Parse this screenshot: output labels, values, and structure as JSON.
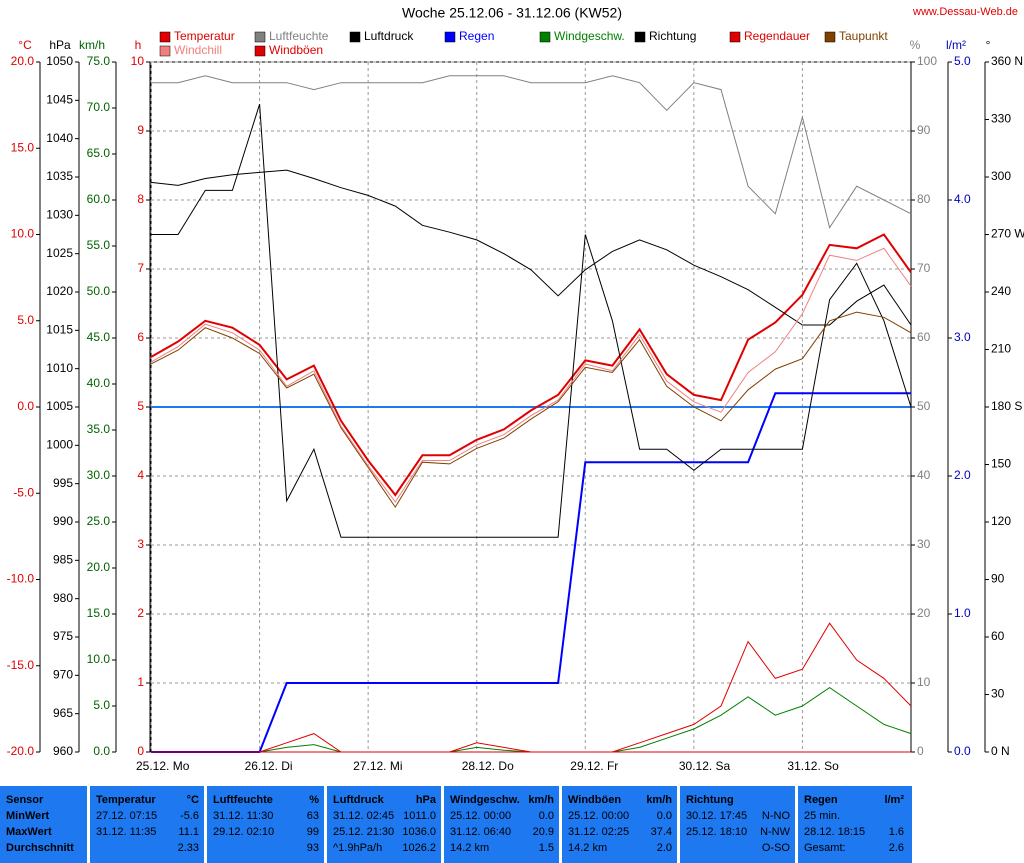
{
  "chart_data": {
    "type": "line",
    "title": "Woche 25.12.06 - 31.12.06 (KW52)",
    "website": "www.Dessau-Web.de",
    "x": [
      0,
      6,
      12,
      18,
      24,
      30,
      36,
      42,
      48,
      54,
      60,
      66,
      72,
      78,
      84,
      90,
      96,
      102,
      108,
      114,
      120,
      126,
      132,
      138,
      144,
      150,
      156,
      162,
      168
    ],
    "xlim": [
      0,
      168
    ],
    "xticks": [
      {
        "value": 0,
        "label": "25.12. Mo"
      },
      {
        "value": 24,
        "label": "26.12. Di"
      },
      {
        "value": 48,
        "label": "27.12. Mi"
      },
      {
        "value": 72,
        "label": "28.12. Do"
      },
      {
        "value": 96,
        "label": "29.12. Fr"
      },
      {
        "value": 120,
        "label": "30.12. Sa"
      },
      {
        "value": 144,
        "label": "31.12. So"
      }
    ],
    "grid": true,
    "axes": {
      "temp": {
        "unit": "°C",
        "color": "#e00000",
        "lim": [
          -20,
          20
        ],
        "ticks": [
          {
            "value": -20,
            "label": "-20.0"
          },
          {
            "value": -15,
            "label": "-15.0"
          },
          {
            "value": -10,
            "label": "-10.0"
          },
          {
            "value": -5,
            "label": "-5.0"
          },
          {
            "value": 0,
            "label": "0.0"
          },
          {
            "value": 5,
            "label": "5.0"
          },
          {
            "value": 10,
            "label": "10.0"
          },
          {
            "value": 15,
            "label": "15.0"
          },
          {
            "value": 20,
            "label": "20.0"
          }
        ]
      },
      "hpa": {
        "unit": "hPa",
        "color": "#000000",
        "lim": [
          960,
          1050
        ],
        "ticks": [
          960,
          965,
          970,
          975,
          980,
          985,
          990,
          995,
          1000,
          1005,
          1010,
          1015,
          1020,
          1025,
          1030,
          1035,
          1040,
          1045,
          1050
        ]
      },
      "kmh": {
        "unit": "km/h",
        "color": "#006400",
        "lim": [
          0,
          75
        ],
        "ticks": [
          {
            "value": 0,
            "label": "0.0"
          },
          {
            "value": 5,
            "label": "5.0"
          },
          {
            "value": 10,
            "label": "10.0"
          },
          {
            "value": 15,
            "label": "15.0"
          },
          {
            "value": 20,
            "label": "20.0"
          },
          {
            "value": 25,
            "label": "25.0"
          },
          {
            "value": 30,
            "label": "30.0"
          },
          {
            "value": 35,
            "label": "35.0"
          },
          {
            "value": 40,
            "label": "40.0"
          },
          {
            "value": 45,
            "label": "45.0"
          },
          {
            "value": 50,
            "label": "50.0"
          },
          {
            "value": 55,
            "label": "55.0"
          },
          {
            "value": 60,
            "label": "60.0"
          },
          {
            "value": 65,
            "label": "65.0"
          },
          {
            "value": 70,
            "label": "70.0"
          },
          {
            "value": 75,
            "label": "75.0"
          }
        ]
      },
      "h": {
        "unit": "h",
        "color": "#e00000",
        "lim": [
          0,
          10
        ],
        "ticks": [
          0,
          1,
          2,
          3,
          4,
          5,
          6,
          7,
          8,
          9,
          10
        ]
      },
      "pct": {
        "unit": "%",
        "color": "#808080",
        "lim": [
          0,
          100
        ],
        "ticks": [
          0,
          10,
          20,
          30,
          40,
          50,
          60,
          70,
          80,
          90,
          100
        ]
      },
      "rain": {
        "unit": "l/m²",
        "color": "#0000c0",
        "lim": [
          0,
          5
        ],
        "ticks": [
          {
            "value": 0,
            "label": "0.0"
          },
          {
            "value": 1,
            "label": "1.0"
          },
          {
            "value": 2,
            "label": "2.0"
          },
          {
            "value": 3,
            "label": "3.0"
          },
          {
            "value": 4,
            "label": "4.0"
          },
          {
            "value": 5,
            "label": "5.0"
          }
        ]
      },
      "deg": {
        "unit": "°",
        "color": "#000000",
        "lim": [
          0,
          360
        ],
        "ticks": [
          {
            "value": 0,
            "label": "0 N"
          },
          30,
          60,
          90,
          120,
          150,
          {
            "value": 180,
            "label": "180 S"
          },
          210,
          240,
          {
            "value": 270,
            "label": "270 W"
          },
          300,
          330,
          {
            "value": 360,
            "label": "360 N"
          }
        ]
      }
    },
    "series": [
      {
        "name": "Temperatur",
        "color": "#e00000",
        "axis": "temp",
        "values": [
          2.9,
          3.8,
          5.0,
          4.6,
          3.6,
          1.6,
          2.4,
          -0.8,
          -3.1,
          -5.1,
          -2.8,
          -2.8,
          -1.9,
          -1.3,
          -0.2,
          0.7,
          2.7,
          2.4,
          4.5,
          1.9,
          0.7,
          0.4,
          3.9,
          4.9,
          6.5,
          9.4,
          9.2,
          10.0,
          7.8
        ]
      },
      {
        "name": "Luftfeuchte",
        "color": "#808080",
        "axis": "pct",
        "values": [
          97,
          97,
          98,
          97,
          97,
          97,
          96,
          97,
          97,
          97,
          97,
          98,
          98,
          98,
          97,
          97,
          97,
          98,
          97,
          93,
          97,
          96,
          82,
          78,
          92,
          76,
          82,
          80,
          78
        ]
      },
      {
        "name": "Luftdruck",
        "color": "#000000",
        "axis": "hpa",
        "values": [
          1034.3,
          1033.9,
          1034.8,
          1035.3,
          1035.6,
          1035.9,
          1034.8,
          1033.6,
          1032.6,
          1031.2,
          1028.7,
          1027.8,
          1026.8,
          1025.0,
          1022.9,
          1019.5,
          1022.9,
          1025.3,
          1026.8,
          1025.5,
          1023.5,
          1022.0,
          1020.3,
          1018.0,
          1015.7,
          1015.7,
          1018.8,
          1020.9,
          1015.7
        ]
      },
      {
        "name": "Regen",
        "color": "#0000ff",
        "axis": "rain",
        "values": [
          0,
          0,
          0,
          0,
          0,
          0.5,
          0.5,
          0.5,
          0.5,
          0.5,
          0.5,
          0.5,
          0.5,
          0.5,
          0.5,
          0.5,
          2.1,
          2.1,
          2.1,
          2.1,
          2.1,
          2.1,
          2.1,
          2.6,
          2.6,
          2.6,
          2.6,
          2.6,
          2.6
        ]
      },
      {
        "name": "Windgeschw.",
        "color": "#008000",
        "axis": "kmh",
        "values": [
          0,
          0,
          0,
          0,
          0,
          0.5,
          0.8,
          0,
          0,
          0,
          0,
          0,
          0.5,
          0.2,
          0,
          0,
          0,
          0,
          0.5,
          1.5,
          2.5,
          4,
          6,
          4,
          5,
          7,
          5,
          3,
          2
        ]
      },
      {
        "name": "Richtung",
        "color": "#000000",
        "axis": "deg",
        "values": [
          270,
          270,
          293,
          293,
          338,
          131,
          158,
          112,
          112,
          112,
          112,
          112,
          112,
          112,
          112,
          112,
          270,
          225,
          158,
          158,
          147,
          158,
          158,
          158,
          158,
          236,
          255,
          225,
          180
        ]
      },
      {
        "name": "Regendauer",
        "color": "#e00000",
        "axis": "h",
        "values": [
          0,
          0,
          0,
          0,
          0,
          0,
          0,
          0,
          0,
          0,
          0,
          0,
          0,
          0,
          0,
          0,
          0,
          0,
          0,
          0,
          0,
          0,
          0,
          0,
          0,
          0,
          0,
          0,
          0
        ]
      },
      {
        "name": "Taupunkt",
        "color": "#804000",
        "axis": "temp",
        "values": [
          2.5,
          3.3,
          4.6,
          4.0,
          3.1,
          1.1,
          1.9,
          -1.2,
          -3.5,
          -5.8,
          -3.2,
          -3.3,
          -2.4,
          -1.8,
          -0.7,
          0.3,
          2.3,
          2.0,
          3.9,
          1.2,
          0.0,
          -0.8,
          1.0,
          2.2,
          2.8,
          5.0,
          5.5,
          5.2,
          4.3
        ]
      },
      {
        "name": "Windchill",
        "color": "#f08080",
        "axis": "temp",
        "values": [
          2.6,
          3.5,
          4.8,
          4.3,
          3.3,
          1.2,
          2.1,
          -1.1,
          -3.4,
          -5.5,
          -3.1,
          -3.1,
          -2.2,
          -1.6,
          -0.5,
          0.4,
          2.5,
          2.1,
          4.2,
          1.5,
          0.3,
          -0.3,
          2.0,
          3.2,
          5.4,
          8.8,
          8.5,
          9.2,
          7.0
        ]
      },
      {
        "name": "Windböen",
        "color": "#e00000",
        "axis": "kmh",
        "values": [
          0,
          0,
          0,
          0,
          0,
          1,
          2,
          0,
          0,
          0,
          0,
          0,
          1,
          0.5,
          0,
          0,
          0,
          0,
          1,
          2,
          3,
          5,
          12,
          8,
          9,
          14,
          10,
          8,
          5
        ]
      }
    ]
  },
  "table": {
    "header": [
      {
        "l": "Sensor"
      },
      {
        "l": "Temperatur",
        "r": "°C"
      },
      {
        "l": "Luftfeuchte",
        "r": "%"
      },
      {
        "l": "Luftdruck",
        "r": "hPa"
      },
      {
        "l": "Windgeschw.",
        "r": "km/h"
      },
      {
        "l": "Windböen",
        "r": "km/h"
      },
      {
        "l": "Richtung"
      },
      {
        "l": "Regen",
        "r": "l/m²"
      }
    ],
    "rows": [
      [
        {
          "l": "MinWert"
        },
        {
          "l": "27.12. 07:15",
          "r": "-5.6"
        },
        {
          "l": "31.12. 11:30",
          "r": "63"
        },
        {
          "l": "31.12. 02:45",
          "r": "1011.0"
        },
        {
          "l": "25.12. 00:00",
          "r": "0.0"
        },
        {
          "l": "25.12. 00:00",
          "r": "0.0"
        },
        {
          "l": "30.12. 17:45",
          "r": "N-NO"
        },
        {
          "l": "25 min."
        }
      ],
      [
        {
          "l": "MaxWert"
        },
        {
          "l": "31.12. 11:35",
          "r": "11.1"
        },
        {
          "l": "29.12. 02:10",
          "r": "99"
        },
        {
          "l": "25.12. 21:30",
          "r": "1036.0"
        },
        {
          "l": "31.12. 06:40",
          "r": "20.9"
        },
        {
          "l": "31.12. 02:25",
          "r": "37.4"
        },
        {
          "l": "25.12. 18:10",
          "r": "N-NW"
        },
        {
          "l": "28.12. 18:15",
          "r": "1.6"
        }
      ],
      [
        {
          "l": "Durchschnitt"
        },
        {
          "r": "2.33"
        },
        {
          "r": "93"
        },
        {
          "l": "^1.9hPa/h",
          "r": "1026.2"
        },
        {
          "l": "14.2 km",
          "r": "1.5"
        },
        {
          "l": "14.2 km",
          "r": "2.0"
        },
        {
          "r": "O-SO"
        },
        {
          "l": "Gesamt:",
          "r": "2.6"
        }
      ]
    ]
  }
}
